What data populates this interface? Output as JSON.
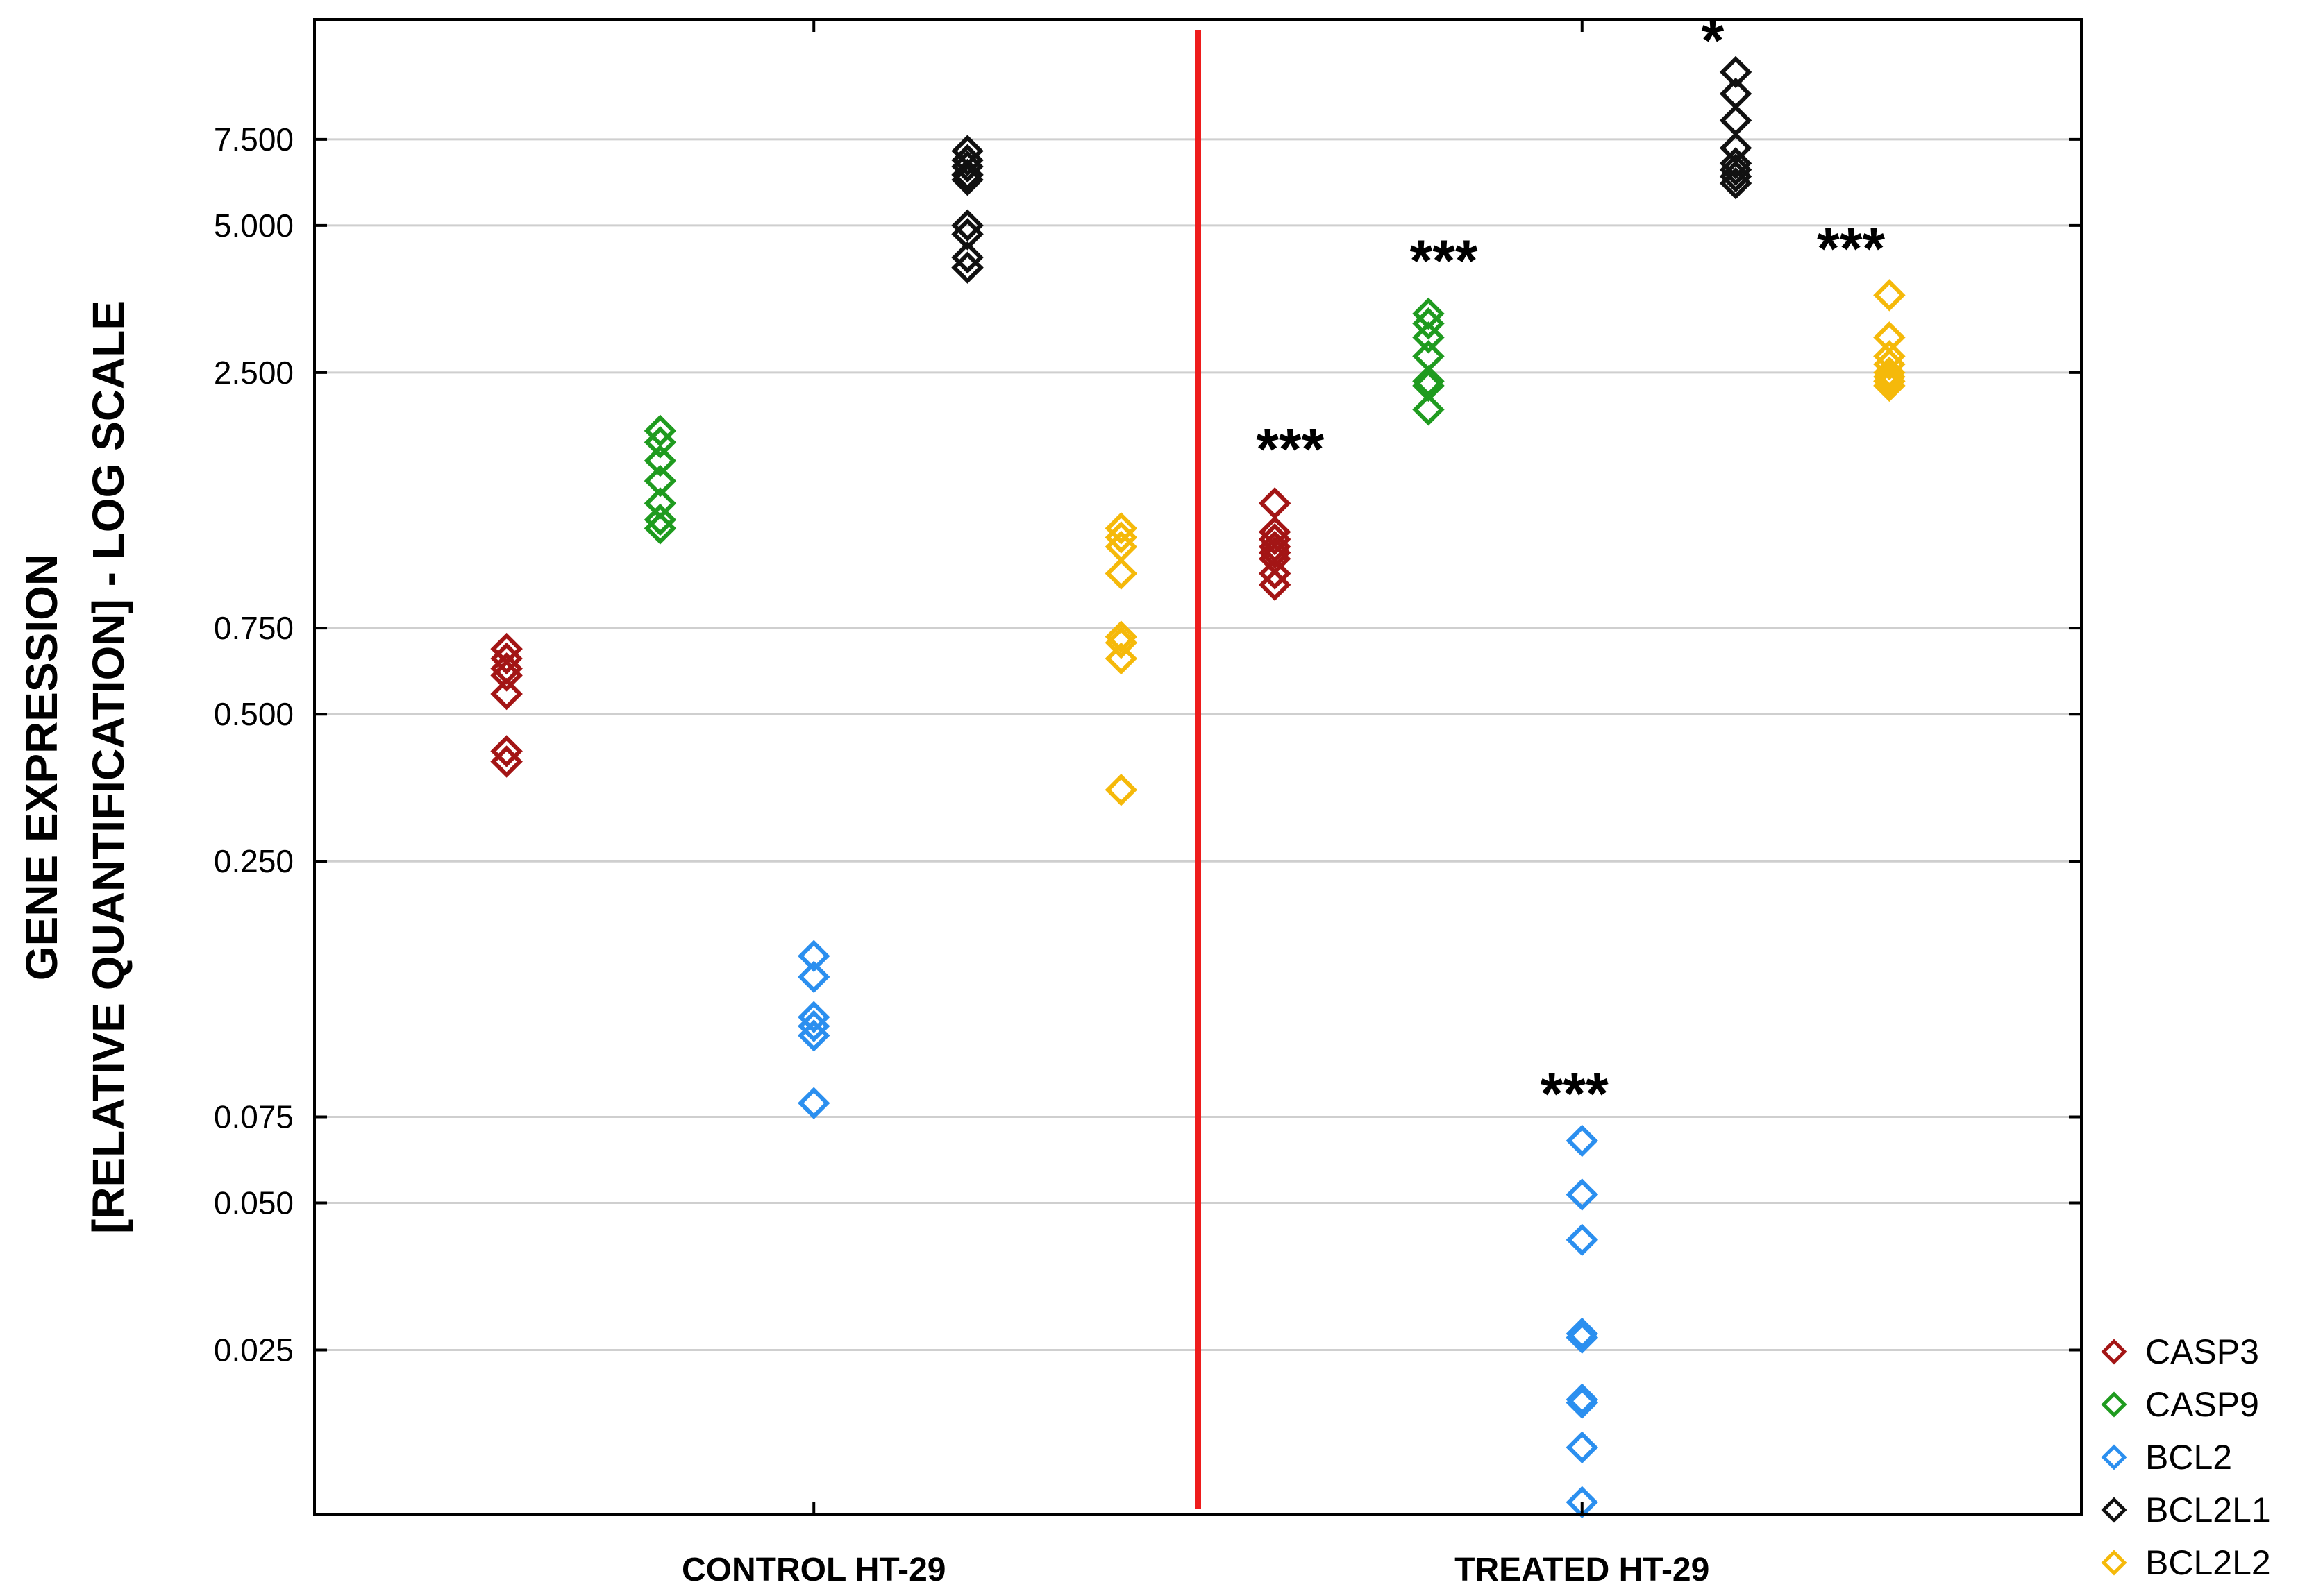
{
  "chart_data": {
    "type": "scatter",
    "title": "",
    "ylabel_lines": [
      "GENE EXPRESSION",
      "[RELATIVE QUANTIFICATION] - LOG SCALE"
    ],
    "xlabel": "",
    "yscale": "log",
    "ylim": [
      0.0115,
      13.2
    ],
    "yticks": [
      0.025,
      0.05,
      0.075,
      0.25,
      0.5,
      0.75,
      2.5,
      5.0,
      7.5
    ],
    "ytick_labels": [
      "0.025",
      "0.050",
      "0.075",
      "0.250",
      "0.500",
      "0.750",
      "2.500",
      "5.000",
      "7.500"
    ],
    "grid": true,
    "groups": [
      "CONTROL HT-29",
      "TREATED HT-29"
    ],
    "legend_position": "bottom-right",
    "colors": {
      "CASP3": "#a31515",
      "CASP9": "#1f9b1f",
      "BCL2": "#2b8fef",
      "BCL2L1": "#111111",
      "BCL2L2": "#f5b90a",
      "divider": "#ee1c1c"
    },
    "series": [
      {
        "name": "CASP3",
        "x": [
          -0.4,
          0.6
        ],
        "group_values": [
          [
            0.68,
            0.65,
            0.62,
            0.6,
            0.55,
            0.42,
            0.4
          ],
          [
            1.35,
            1.18,
            1.14,
            1.1,
            1.07,
            1.04,
            0.97,
            0.92
          ]
        ]
      },
      {
        "name": "CASP9",
        "x": [
          -0.2,
          0.8
        ],
        "group_values": [
          [
            1.9,
            1.8,
            1.65,
            1.5,
            1.35,
            1.25,
            1.2
          ],
          [
            3.3,
            3.15,
            2.95,
            2.7,
            2.4,
            2.35,
            2.1
          ]
        ]
      },
      {
        "name": "BCL2",
        "x": [
          0.0,
          1.0
        ],
        "group_values": [
          [
            0.16,
            0.145,
            0.12,
            0.115,
            0.11,
            0.08
          ],
          [
            0.067,
            0.052,
            0.042,
            0.027,
            0.0265,
            0.0198,
            0.0195,
            0.0158,
            0.0122
          ]
        ]
      },
      {
        "name": "BCL2L1",
        "x": [
          0.2,
          1.2
        ],
        "group_values": [
          [
            7.1,
            6.8,
            6.6,
            6.35,
            6.2,
            5.0,
            4.8,
            4.3,
            4.1
          ],
          [
            10.3,
            9.3,
            8.2,
            7.2,
            6.7,
            6.5,
            6.3,
            6.1
          ]
        ]
      },
      {
        "name": "BCL2L2",
        "x": [
          0.4,
          1.4
        ],
        "group_values": [
          [
            1.2,
            1.15,
            1.1,
            0.97,
            0.72,
            0.7,
            0.65,
            0.35
          ],
          [
            3.6,
            2.95,
            2.7,
            2.6,
            2.5,
            2.45,
            2.4,
            2.35
          ]
        ]
      }
    ],
    "annotations": [
      {
        "text": "***",
        "x": 0.62,
        "y": 1.75
      },
      {
        "text": "***",
        "x": 0.82,
        "y": 4.25
      },
      {
        "text": "***",
        "x": 0.99,
        "y": 0.084
      },
      {
        "text": "*",
        "x": 1.17,
        "y": 12.0
      },
      {
        "text": "***",
        "x": 1.35,
        "y": 4.5
      }
    ],
    "divider_x": 0.5
  }
}
